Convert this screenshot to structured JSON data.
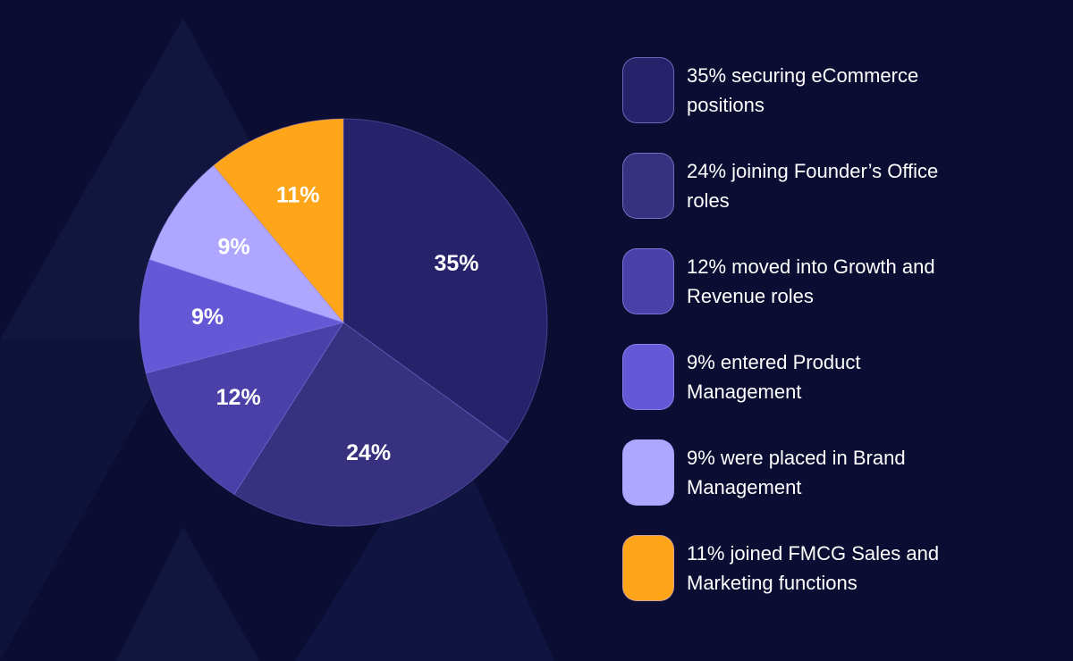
{
  "colors": {
    "background": "#0b0d33",
    "slice_ecommerce": "#27236b",
    "slice_founders": "#37317f",
    "slice_growth": "#4a40a8",
    "slice_product": "#6558d6",
    "slice_brand": "#aea6ff",
    "slice_fmcg": "#ffa51a"
  },
  "chart_data": {
    "type": "pie",
    "slices": [
      {
        "label": "35%",
        "value": 35,
        "color": "#27236b"
      },
      {
        "label": "24%",
        "value": 24,
        "color": "#37317f"
      },
      {
        "label": "12%",
        "value": 12,
        "color": "#4a40a8"
      },
      {
        "label": "9%",
        "value": 9,
        "color": "#6558d6"
      },
      {
        "label": "9%",
        "value": 9,
        "color": "#aea6ff"
      },
      {
        "label": "11%",
        "value": 11,
        "color": "#ffa51a"
      }
    ],
    "legend": [
      {
        "text": "35% securing eCommerce positions",
        "color": "#27236b"
      },
      {
        "text": "24% joining Founder’s Office roles",
        "color": "#37317f"
      },
      {
        "text": "12% moved into Growth and Revenue roles",
        "color": "#4a40a8"
      },
      {
        "text": "9% entered Product Management",
        "color": "#6558d6"
      },
      {
        "text": "9% were placed in Brand Management",
        "color": "#aea6ff"
      },
      {
        "text": "11% joined FMCG Sales and Marketing functions",
        "color": "#ffa51a"
      }
    ],
    "legend_position": "right"
  }
}
